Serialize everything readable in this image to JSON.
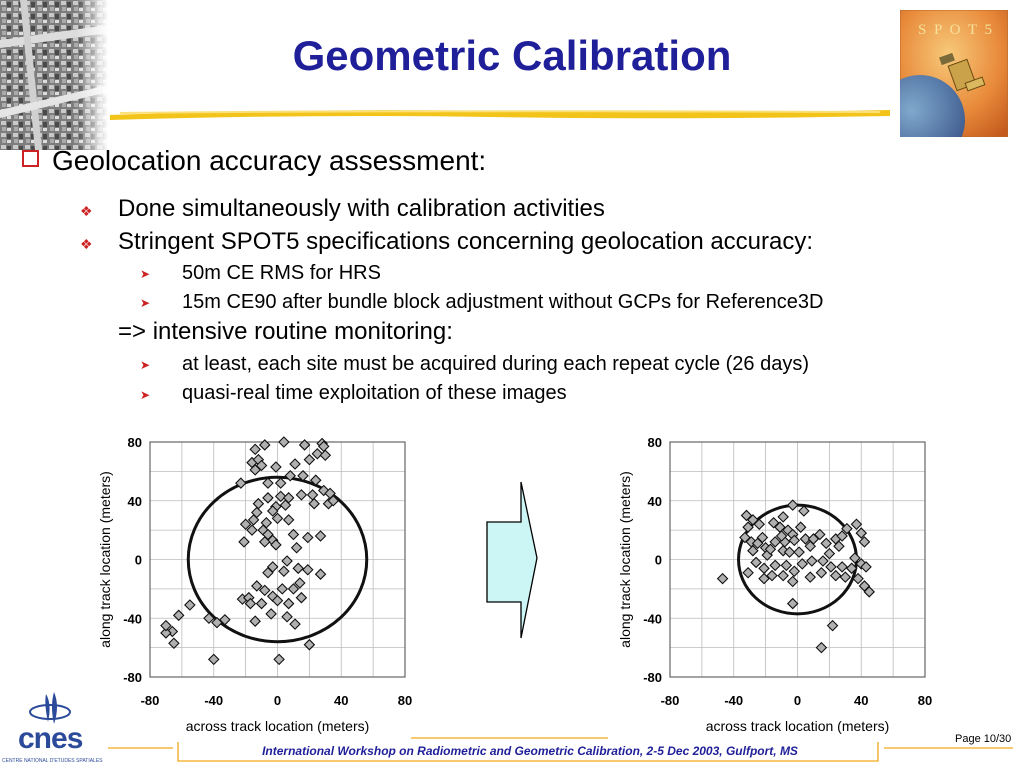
{
  "slide": {
    "title": "Geometric Calibration",
    "logo_text": "S P O T 5",
    "org_name": "cnes",
    "org_subtitle": "CENTRE NATIONAL D'ETUDES SPATIALES",
    "footer": "International Workshop on Radiometric and Geometric Calibration, 2-5 Dec 2003, Gulfport, MS",
    "page": "Page 10/30"
  },
  "bullets": {
    "main": "Geolocation accuracy assessment:",
    "sub1": "Done simultaneously with calibration activities",
    "sub2": "Stringent SPOT5 specifications concerning geolocation accuracy:",
    "sub2a": "50m CE RMS for HRS",
    "sub2b": "15m CE90 after bundle block adjustment without GCPs for Reference3D",
    "arrow_line": "=> intensive routine monitoring:",
    "sub3a": "at least, each site must be acquired during each repeat cycle (26 days)",
    "sub3b": "quasi-real time exploitation of these images"
  },
  "colors": {
    "title": "#1f1f99",
    "bullet": "#cc2222",
    "arrow_fill": "#ccf5f5",
    "marker": "#b0b0b0"
  },
  "chart_data": [
    {
      "type": "scatter",
      "xlabel": "across track location (meters)",
      "ylabel": "along track location (meters)",
      "xlim": [
        -80,
        80
      ],
      "ylim": [
        -80,
        80
      ],
      "xticks": [
        "-80",
        "-40",
        "0",
        "40",
        "80"
      ],
      "yticks": [
        "80",
        "40",
        "0",
        "-40",
        "-80"
      ],
      "grid": true,
      "circle_radius": 56,
      "points": [
        [
          -14,
          75
        ],
        [
          -8,
          78
        ],
        [
          4,
          80
        ],
        [
          17,
          78
        ],
        [
          28,
          79
        ],
        [
          -16,
          66
        ],
        [
          -12,
          68
        ],
        [
          -14,
          61
        ],
        [
          -10,
          64
        ],
        [
          -1,
          63
        ],
        [
          8,
          57
        ],
        [
          11,
          65
        ],
        [
          20,
          68
        ],
        [
          25,
          72
        ],
        [
          29,
          77
        ],
        [
          30,
          71
        ],
        [
          -23,
          52
        ],
        [
          -6,
          52
        ],
        [
          2,
          52
        ],
        [
          16,
          57
        ],
        [
          24,
          54
        ],
        [
          22,
          44
        ],
        [
          29,
          47
        ],
        [
          33,
          45
        ],
        [
          -6,
          42
        ],
        [
          2,
          43
        ],
        [
          -12,
          38
        ],
        [
          -1,
          36
        ],
        [
          7,
          42
        ],
        [
          23,
          38
        ],
        [
          32,
          38
        ],
        [
          35,
          40
        ],
        [
          -13,
          32
        ],
        [
          -3,
          33
        ],
        [
          5,
          37
        ],
        [
          15,
          44
        ],
        [
          -20,
          24
        ],
        [
          -15,
          27
        ],
        [
          -7,
          25
        ],
        [
          0,
          28
        ],
        [
          7,
          27
        ],
        [
          -16,
          20
        ],
        [
          -9,
          20
        ],
        [
          -6,
          17
        ],
        [
          -21,
          12
        ],
        [
          -3,
          13
        ],
        [
          -8,
          12
        ],
        [
          10,
          17
        ],
        [
          19,
          15
        ],
        [
          27,
          16
        ],
        [
          -1,
          10
        ],
        [
          12,
          8
        ],
        [
          -3,
          -5
        ],
        [
          6,
          -1
        ],
        [
          -6,
          -9
        ],
        [
          4,
          -8
        ],
        [
          13,
          -6
        ],
        [
          19,
          -7
        ],
        [
          27,
          -10
        ],
        [
          -13,
          -18
        ],
        [
          -8,
          -21
        ],
        [
          3,
          -20
        ],
        [
          10,
          -20
        ],
        [
          14,
          -16
        ],
        [
          -22,
          -27
        ],
        [
          -18,
          -26
        ],
        [
          -3,
          -25
        ],
        [
          -17,
          -30
        ],
        [
          -10,
          -30
        ],
        [
          0,
          -28
        ],
        [
          7,
          -30
        ],
        [
          15,
          -26
        ],
        [
          -4,
          -37
        ],
        [
          6,
          -39
        ],
        [
          -14,
          -42
        ],
        [
          11,
          -44
        ],
        [
          -33,
          -41
        ],
        [
          -38,
          -43
        ],
        [
          -43,
          -40
        ],
        [
          -55,
          -31
        ],
        [
          -62,
          -38
        ],
        [
          -66,
          -49
        ],
        [
          -70,
          -50
        ],
        [
          -65,
          -57
        ],
        [
          -40,
          -68
        ],
        [
          20,
          -58
        ],
        [
          1,
          -68
        ],
        [
          -70,
          -45
        ]
      ]
    },
    {
      "type": "scatter",
      "xlabel": "across track location (meters)",
      "ylabel": "along track location (meters)",
      "xlim": [
        -80,
        80
      ],
      "ylim": [
        -80,
        80
      ],
      "xticks": [
        "-80",
        "-40",
        "0",
        "40",
        "80"
      ],
      "yticks": [
        "80",
        "40",
        "0",
        "-40",
        "-80"
      ],
      "grid": true,
      "circle_radius": 37,
      "points": [
        [
          -32,
          30
        ],
        [
          -28,
          27
        ],
        [
          -24,
          24
        ],
        [
          -31,
          22
        ],
        [
          -22,
          15
        ],
        [
          -29,
          12
        ],
        [
          -25,
          11
        ],
        [
          -20,
          8
        ],
        [
          -28,
          6
        ],
        [
          -19,
          3
        ],
        [
          -15,
          25
        ],
        [
          -9,
          29
        ],
        [
          -3,
          37
        ],
        [
          4,
          33
        ],
        [
          -11,
          22
        ],
        [
          -6,
          20
        ],
        [
          -3,
          17
        ],
        [
          2,
          22
        ],
        [
          -14,
          12
        ],
        [
          -8,
          12
        ],
        [
          -2,
          13
        ],
        [
          5,
          14
        ],
        [
          -17,
          7
        ],
        [
          -9,
          6
        ],
        [
          -5,
          5
        ],
        [
          1,
          5
        ],
        [
          8,
          9
        ],
        [
          14,
          17
        ],
        [
          18,
          11
        ],
        [
          24,
          14
        ],
        [
          26,
          9
        ],
        [
          31,
          21
        ],
        [
          37,
          24
        ],
        [
          40,
          18
        ],
        [
          42,
          12
        ],
        [
          -26,
          -2
        ],
        [
          -21,
          -6
        ],
        [
          -14,
          -4
        ],
        [
          -7,
          -4
        ],
        [
          -2,
          -8
        ],
        [
          3,
          -3
        ],
        [
          9,
          -1
        ],
        [
          16,
          -1
        ],
        [
          21,
          -5
        ],
        [
          28,
          -5
        ],
        [
          34,
          -6
        ],
        [
          40,
          -3
        ],
        [
          43,
          -5
        ],
        [
          -31,
          -9
        ],
        [
          -21,
          -13
        ],
        [
          -9,
          -11
        ],
        [
          -3,
          -15
        ],
        [
          8,
          -12
        ],
        [
          15,
          -9
        ],
        [
          24,
          -11
        ],
        [
          30,
          -12
        ],
        [
          38,
          -13
        ],
        [
          42,
          -18
        ],
        [
          45,
          -22
        ],
        [
          -3,
          -30
        ],
        [
          22,
          -45
        ],
        [
          15,
          -60
        ],
        [
          -47,
          -13
        ],
        [
          -33,
          15
        ],
        [
          -10,
          16
        ],
        [
          10,
          14
        ],
        [
          20,
          4
        ],
        [
          36,
          1
        ],
        [
          -16,
          -11
        ],
        [
          28,
          16
        ]
      ]
    }
  ]
}
